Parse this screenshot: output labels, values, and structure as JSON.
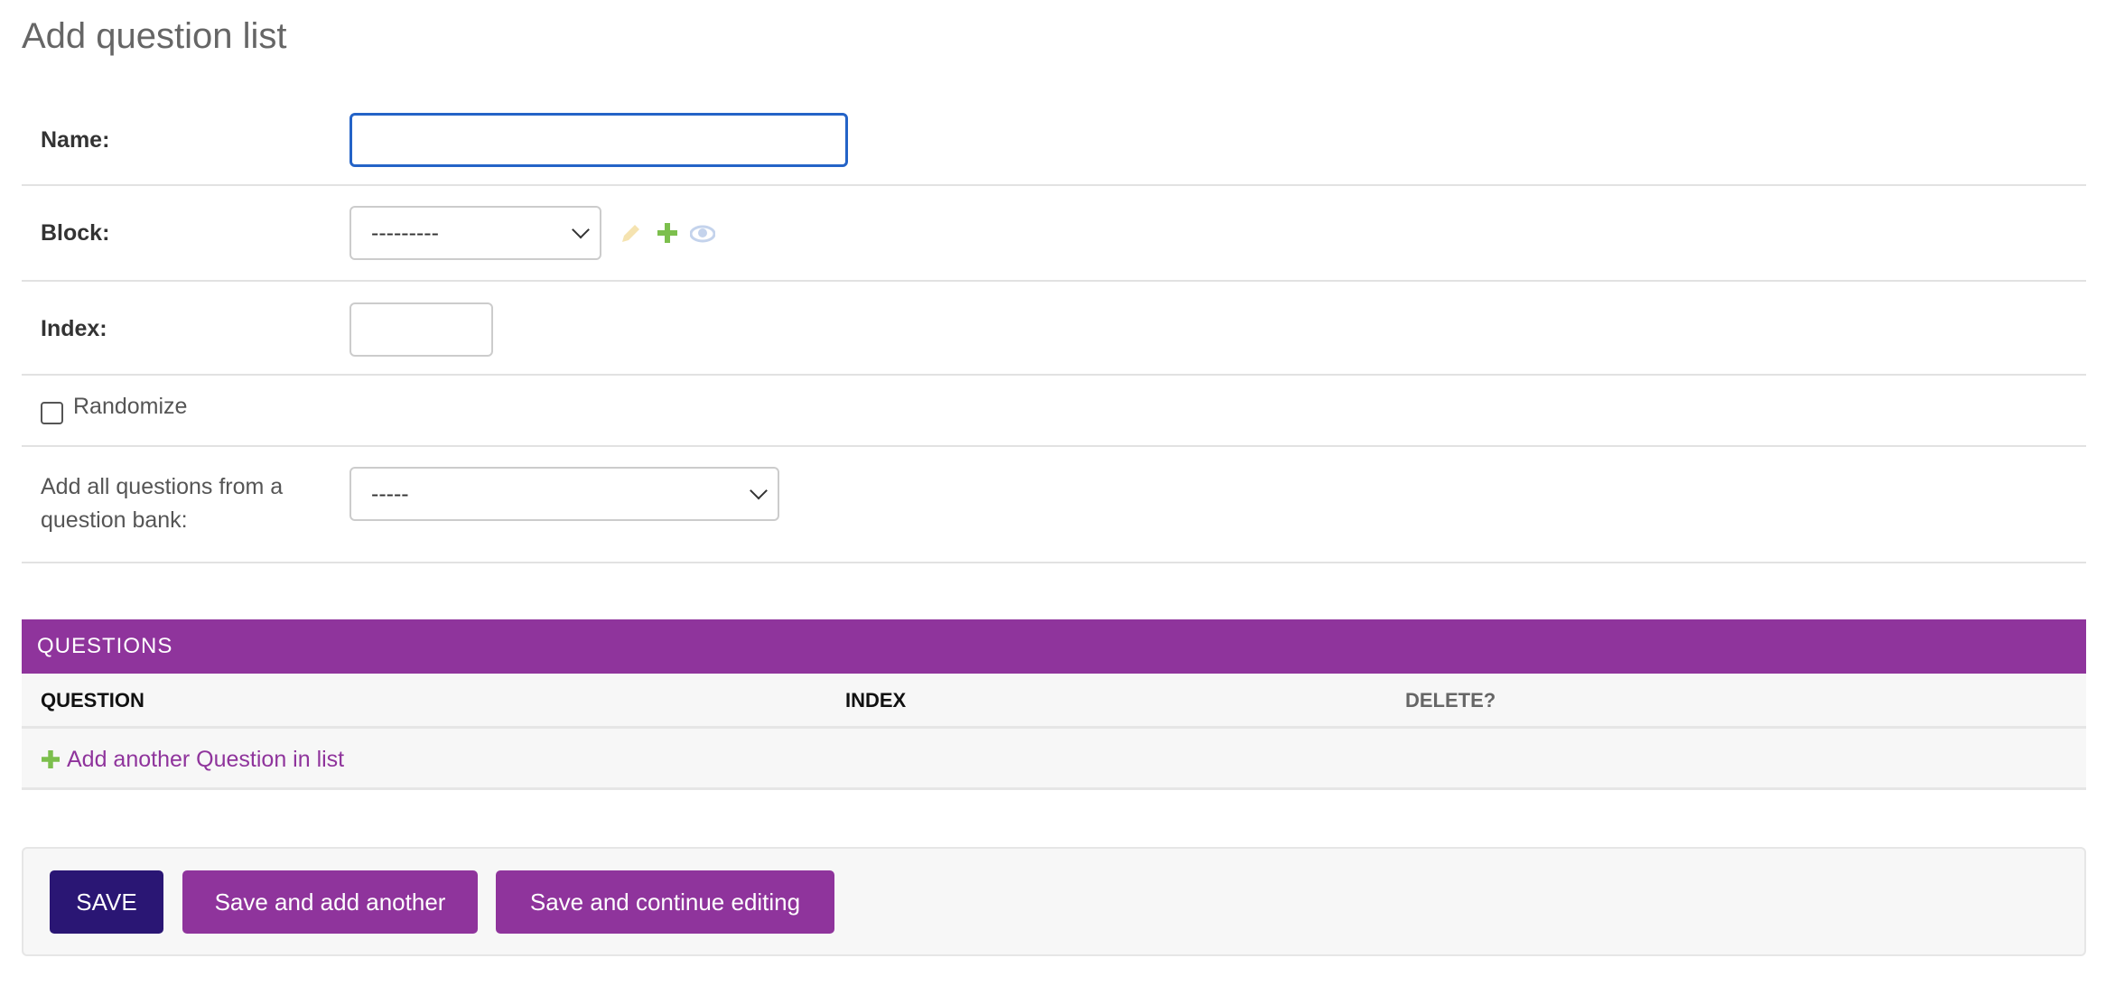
{
  "page": {
    "title": "Add question list"
  },
  "form": {
    "name": {
      "label": "Name:",
      "value": ""
    },
    "block": {
      "label": "Block:",
      "selected": "---------",
      "icons": [
        "pencil-icon",
        "plus-icon",
        "eye-icon"
      ]
    },
    "index": {
      "label": "Index:",
      "value": ""
    },
    "randomize": {
      "label": "Randomize",
      "checked": false
    },
    "bank": {
      "label_line1": "Add all questions from a",
      "label_line2": "question bank:",
      "selected": "-----"
    }
  },
  "questions": {
    "header": "QUESTIONS",
    "columns": [
      "QUESTION",
      "INDEX",
      "DELETE?"
    ],
    "add_link": "Add another Question in list"
  },
  "actions": {
    "save": "SAVE",
    "save_add": "Save and add another",
    "save_continue": "Save and continue editing"
  },
  "colors": {
    "accent": "#8f349c",
    "save": "#2a1674",
    "focus": "#2463c7",
    "add_green": "#7cbf4d"
  }
}
